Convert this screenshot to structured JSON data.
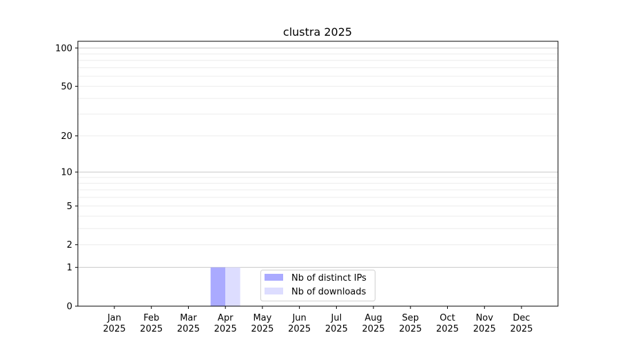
{
  "chart_data": {
    "type": "bar",
    "title": "clustra 2025",
    "xlabel": "",
    "ylabel": "",
    "yscale": "log(1+y)",
    "ylim": [
      0,
      113
    ],
    "yticks": [
      0,
      1,
      2,
      5,
      10,
      20,
      50,
      100
    ],
    "major_grid": [
      1,
      10,
      100
    ],
    "minor_grid": [
      2,
      3,
      4,
      5,
      6,
      7,
      8,
      9,
      20,
      30,
      40,
      50,
      60,
      70,
      80,
      90
    ],
    "grid": true,
    "legend_position": "lower center",
    "categories": [
      "Jan\n2025",
      "Feb\n2025",
      "Mar\n2025",
      "Apr\n2025",
      "May\n2025",
      "Jun\n2025",
      "Jul\n2025",
      "Aug\n2025",
      "Sep\n2025",
      "Oct\n2025",
      "Nov\n2025",
      "Dec\n2025"
    ],
    "series": [
      {
        "name": "Nb of distinct IPs",
        "color": "#aaaaff",
        "values": [
          0,
          0,
          0,
          1,
          0,
          0,
          0,
          0,
          0,
          0,
          0,
          0
        ]
      },
      {
        "name": "Nb of downloads",
        "color": "#ddddff",
        "values": [
          0,
          0,
          0,
          1,
          0,
          0,
          0,
          0,
          0,
          0,
          0,
          0
        ]
      }
    ]
  }
}
